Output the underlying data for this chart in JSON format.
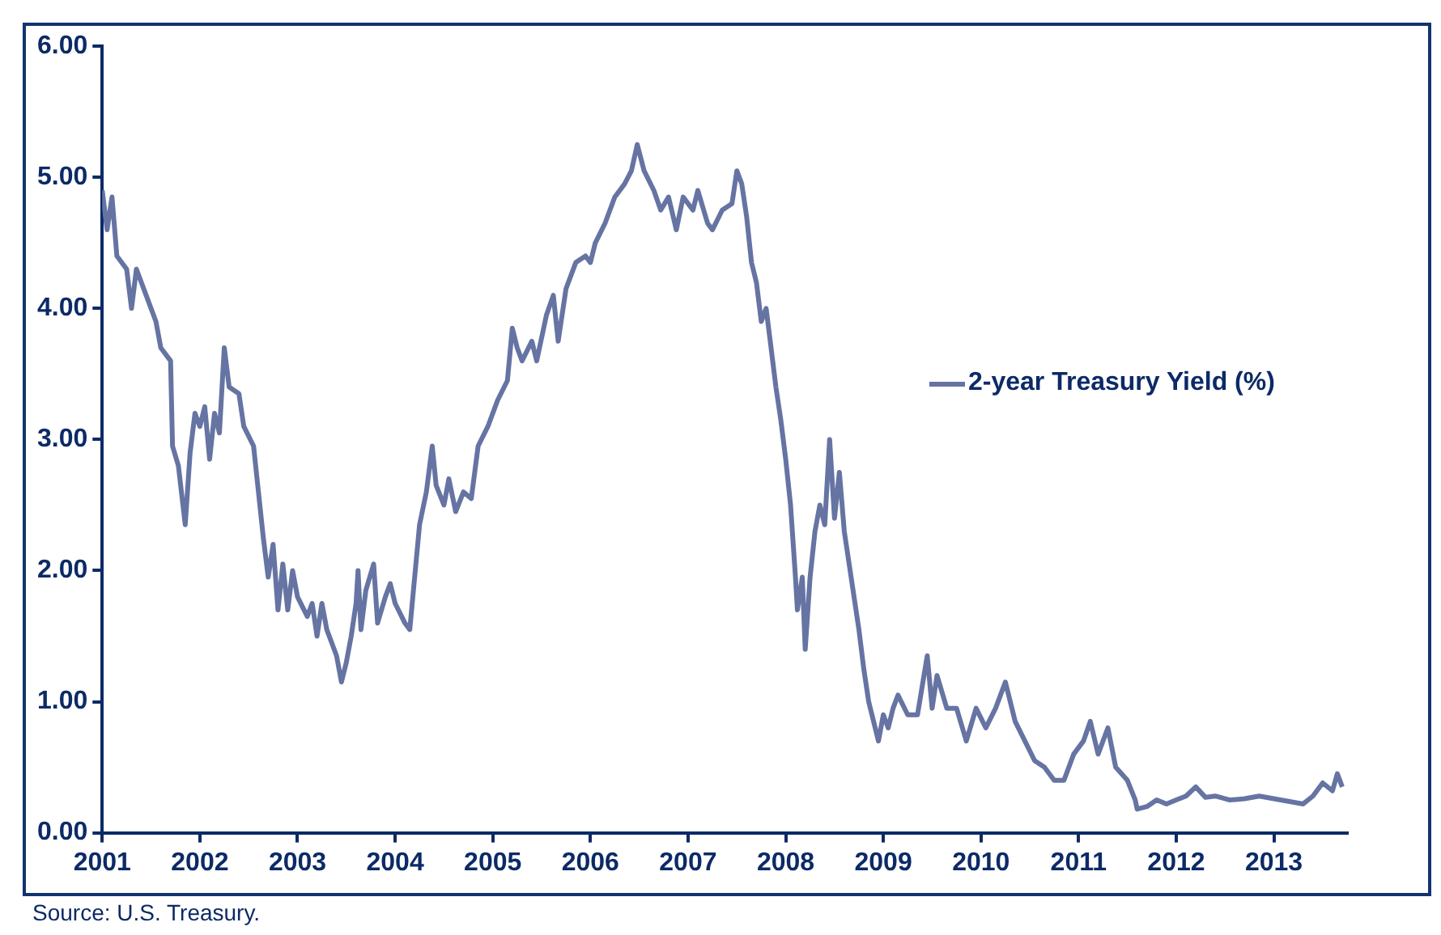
{
  "chart_data": {
    "type": "line",
    "annotations": [
      "Source: U.S. Treasury."
    ],
    "legend": "right",
    "grid": false,
    "marker": "none",
    "line_style": "solid",
    "xlim": [
      2001,
      2013.75
    ],
    "xticks": [
      2001,
      2002,
      2003,
      2004,
      2005,
      2006,
      2007,
      2008,
      2009,
      2010,
      2011,
      2012,
      2013
    ],
    "ylim": [
      0,
      6
    ],
    "yticks": [
      {
        "value": 0,
        "label": "0.00"
      },
      {
        "value": 1,
        "label": "1.00"
      },
      {
        "value": 2,
        "label": "2.00"
      },
      {
        "value": 3,
        "label": "3.00"
      },
      {
        "value": 4,
        "label": "4.00"
      },
      {
        "value": 5,
        "label": "5.00"
      },
      {
        "value": 6,
        "label": "6.00"
      }
    ],
    "series": [
      {
        "name": "2-year Treasury Yield (%)",
        "color": "#6674a3",
        "x": [
          2001.0,
          2001.05,
          2001.1,
          2001.15,
          2001.25,
          2001.3,
          2001.35,
          2001.45,
          2001.55,
          2001.6,
          2001.7,
          2001.72,
          2001.78,
          2001.85,
          2001.9,
          2001.95,
          2002.0,
          2002.05,
          2002.1,
          2002.15,
          2002.2,
          2002.25,
          2002.3,
          2002.4,
          2002.45,
          2002.55,
          2002.6,
          2002.65,
          2002.7,
          2002.75,
          2002.8,
          2002.85,
          2002.9,
          2002.95,
          2003.0,
          2003.1,
          2003.15,
          2003.2,
          2003.25,
          2003.3,
          2003.4,
          2003.45,
          2003.5,
          2003.55,
          2003.6,
          2003.62,
          2003.65,
          2003.7,
          2003.78,
          2003.82,
          2003.9,
          2003.95,
          2004.0,
          2004.1,
          2004.15,
          2004.2,
          2004.25,
          2004.32,
          2004.38,
          2004.42,
          2004.5,
          2004.55,
          2004.62,
          2004.7,
          2004.78,
          2004.85,
          2004.95,
          2005.05,
          2005.15,
          2005.2,
          2005.25,
          2005.3,
          2005.4,
          2005.45,
          2005.55,
          2005.62,
          2005.67,
          2005.75,
          2005.85,
          2005.95,
          2006.0,
          2006.05,
          2006.15,
          2006.25,
          2006.35,
          2006.42,
          2006.48,
          2006.55,
          2006.65,
          2006.72,
          2006.8,
          2006.88,
          2006.95,
          2007.05,
          2007.1,
          2007.2,
          2007.25,
          2007.35,
          2007.45,
          2007.5,
          2007.55,
          2007.6,
          2007.65,
          2007.7,
          2007.75,
          2007.8,
          2007.85,
          2007.9,
          2007.95,
          2008.0,
          2008.05,
          2008.1,
          2008.12,
          2008.17,
          2008.2,
          2008.25,
          2008.3,
          2008.35,
          2008.4,
          2008.45,
          2008.5,
          2008.55,
          2008.6,
          2008.68,
          2008.75,
          2008.8,
          2008.85,
          2008.9,
          2008.95,
          2009.0,
          2009.05,
          2009.1,
          2009.15,
          2009.25,
          2009.35,
          2009.45,
          2009.5,
          2009.55,
          2009.65,
          2009.75,
          2009.85,
          2009.95,
          2010.05,
          2010.15,
          2010.25,
          2010.35,
          2010.45,
          2010.55,
          2010.65,
          2010.75,
          2010.85,
          2010.95,
          2011.05,
          2011.12,
          2011.2,
          2011.3,
          2011.38,
          2011.5,
          2011.58,
          2011.6,
          2011.7,
          2011.8,
          2011.9,
          2012.0,
          2012.1,
          2012.2,
          2012.3,
          2012.4,
          2012.55,
          2012.7,
          2012.85,
          2013.0,
          2013.15,
          2013.3,
          2013.4,
          2013.5,
          2013.6,
          2013.65,
          2013.7
        ],
        "values": [
          4.9,
          4.6,
          4.85,
          4.4,
          4.3,
          4.0,
          4.3,
          4.1,
          3.9,
          3.7,
          3.6,
          2.95,
          2.8,
          2.35,
          2.9,
          3.2,
          3.1,
          3.25,
          2.85,
          3.2,
          3.05,
          3.7,
          3.4,
          3.35,
          3.1,
          2.95,
          2.6,
          2.25,
          1.95,
          2.2,
          1.7,
          2.05,
          1.7,
          2.0,
          1.8,
          1.65,
          1.75,
          1.5,
          1.75,
          1.55,
          1.35,
          1.15,
          1.3,
          1.5,
          1.75,
          2.0,
          1.55,
          1.85,
          2.05,
          1.6,
          1.8,
          1.9,
          1.75,
          1.6,
          1.55,
          1.95,
          2.35,
          2.6,
          2.95,
          2.65,
          2.5,
          2.7,
          2.45,
          2.6,
          2.55,
          2.95,
          3.1,
          3.3,
          3.45,
          3.85,
          3.7,
          3.6,
          3.75,
          3.6,
          3.95,
          4.1,
          3.75,
          4.15,
          4.35,
          4.4,
          4.35,
          4.5,
          4.65,
          4.85,
          4.95,
          5.05,
          5.25,
          5.05,
          4.9,
          4.75,
          4.85,
          4.6,
          4.85,
          4.75,
          4.9,
          4.65,
          4.6,
          4.75,
          4.8,
          5.05,
          4.95,
          4.7,
          4.35,
          4.2,
          3.9,
          4.0,
          3.7,
          3.4,
          3.15,
          2.85,
          2.5,
          1.95,
          1.7,
          1.95,
          1.4,
          1.95,
          2.3,
          2.5,
          2.35,
          3.0,
          2.4,
          2.75,
          2.3,
          1.9,
          1.55,
          1.25,
          1.0,
          0.85,
          0.7,
          0.9,
          0.8,
          0.95,
          1.05,
          0.9,
          0.9,
          1.35,
          0.95,
          1.2,
          0.95,
          0.95,
          0.7,
          0.95,
          0.8,
          0.95,
          1.15,
          0.85,
          0.7,
          0.55,
          0.5,
          0.4,
          0.4,
          0.6,
          0.7,
          0.85,
          0.6,
          0.8,
          0.5,
          0.4,
          0.25,
          0.18,
          0.2,
          0.25,
          0.22,
          0.25,
          0.28,
          0.35,
          0.27,
          0.28,
          0.25,
          0.26,
          0.28,
          0.26,
          0.24,
          0.22,
          0.28,
          0.38,
          0.32,
          0.45,
          0.35
        ]
      }
    ]
  }
}
